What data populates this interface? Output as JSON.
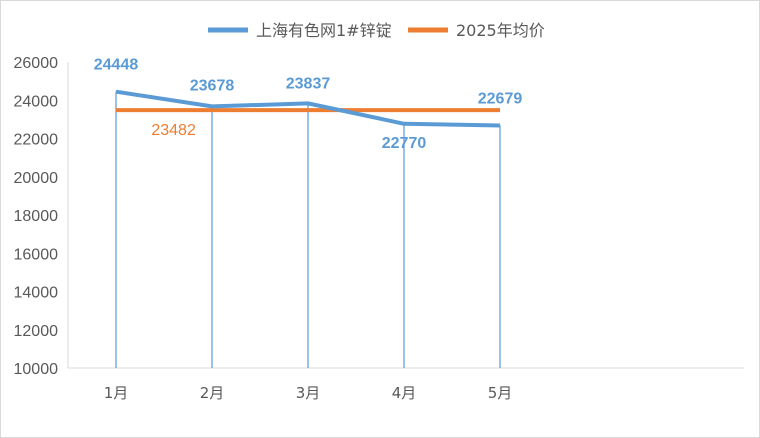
{
  "chart_data": {
    "type": "line",
    "title": "",
    "xlabel": "",
    "ylabel": "",
    "categories": [
      "1月",
      "2月",
      "3月",
      "4月",
      "5月"
    ],
    "ylim": [
      10000,
      26000
    ],
    "yticks": [
      10000,
      12000,
      14000,
      16000,
      18000,
      20000,
      22000,
      24000,
      26000
    ],
    "grid": false,
    "legend_position": "top",
    "drop_lines": true,
    "series": [
      {
        "name": "上海有色网1#锌锭",
        "color": "#5B9BD5",
        "values": [
          24448,
          23678,
          23837,
          22770,
          22679
        ],
        "labels": [
          "24448",
          "23678",
          "23837",
          "22770",
          "22679"
        ]
      },
      {
        "name": "2025年均价",
        "color": "#ED7D31",
        "values": [
          23482,
          23482,
          23482,
          23482,
          23482
        ],
        "label": "23482"
      }
    ]
  }
}
